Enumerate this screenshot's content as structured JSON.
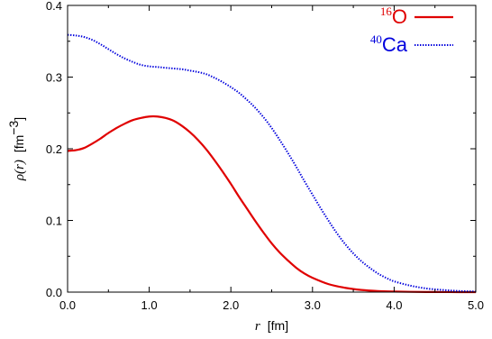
{
  "chart_data": {
    "type": "line",
    "xlabel": "r",
    "xunit": "[fm]",
    "ylabel": "ρ(r)",
    "yunit_base": "[fm",
    "yunit_exp": "−3",
    "yunit_close": "]",
    "xlim": [
      0.0,
      5.0
    ],
    "ylim": [
      0.0,
      0.4
    ],
    "xticks": [
      "0.0",
      "1.0",
      "2.0",
      "3.0",
      "4.0",
      "5.0"
    ],
    "yticks": [
      "0.0",
      "0.1",
      "0.2",
      "0.3",
      "0.4"
    ],
    "grid": false,
    "legend_position": "top-right",
    "series": [
      {
        "name": "O",
        "name_sup": "16",
        "color": "#e00000",
        "style": "solid",
        "x": [
          0.0,
          0.1,
          0.2,
          0.3,
          0.4,
          0.5,
          0.6,
          0.7,
          0.8,
          0.9,
          1.0,
          1.1,
          1.2,
          1.3,
          1.4,
          1.5,
          1.6,
          1.7,
          1.8,
          1.9,
          2.0,
          2.1,
          2.2,
          2.3,
          2.4,
          2.5,
          2.6,
          2.7,
          2.8,
          2.9,
          3.0,
          3.2,
          3.4,
          3.6,
          3.8,
          4.0,
          4.2,
          4.4,
          4.6,
          4.8,
          5.0
        ],
        "y": [
          0.197,
          0.198,
          0.201,
          0.207,
          0.214,
          0.222,
          0.229,
          0.235,
          0.24,
          0.243,
          0.245,
          0.245,
          0.243,
          0.239,
          0.232,
          0.223,
          0.212,
          0.199,
          0.184,
          0.168,
          0.151,
          0.133,
          0.116,
          0.099,
          0.083,
          0.068,
          0.055,
          0.044,
          0.034,
          0.026,
          0.02,
          0.011,
          0.006,
          0.003,
          0.0015,
          0.0008,
          0.0004,
          0.0002,
          0.0001,
          0.0,
          0.0
        ]
      },
      {
        "name": "Ca",
        "name_sup": "40",
        "color": "#0000dd",
        "style": "dotted",
        "x": [
          0.0,
          0.1,
          0.2,
          0.3,
          0.4,
          0.5,
          0.6,
          0.7,
          0.8,
          0.9,
          1.0,
          1.1,
          1.2,
          1.3,
          1.4,
          1.5,
          1.6,
          1.7,
          1.8,
          1.9,
          2.0,
          2.1,
          2.2,
          2.3,
          2.4,
          2.5,
          2.6,
          2.7,
          2.8,
          2.9,
          3.0,
          3.1,
          3.2,
          3.3,
          3.4,
          3.5,
          3.6,
          3.7,
          3.8,
          3.9,
          4.0,
          4.2,
          4.4,
          4.6,
          4.8,
          5.0
        ],
        "y": [
          0.359,
          0.358,
          0.356,
          0.352,
          0.346,
          0.339,
          0.332,
          0.326,
          0.321,
          0.317,
          0.315,
          0.314,
          0.313,
          0.312,
          0.311,
          0.309,
          0.307,
          0.304,
          0.299,
          0.293,
          0.286,
          0.278,
          0.268,
          0.257,
          0.244,
          0.229,
          0.212,
          0.194,
          0.175,
          0.155,
          0.136,
          0.117,
          0.099,
          0.082,
          0.067,
          0.054,
          0.043,
          0.034,
          0.026,
          0.02,
          0.015,
          0.009,
          0.005,
          0.003,
          0.0015,
          0.0008
        ]
      }
    ]
  }
}
